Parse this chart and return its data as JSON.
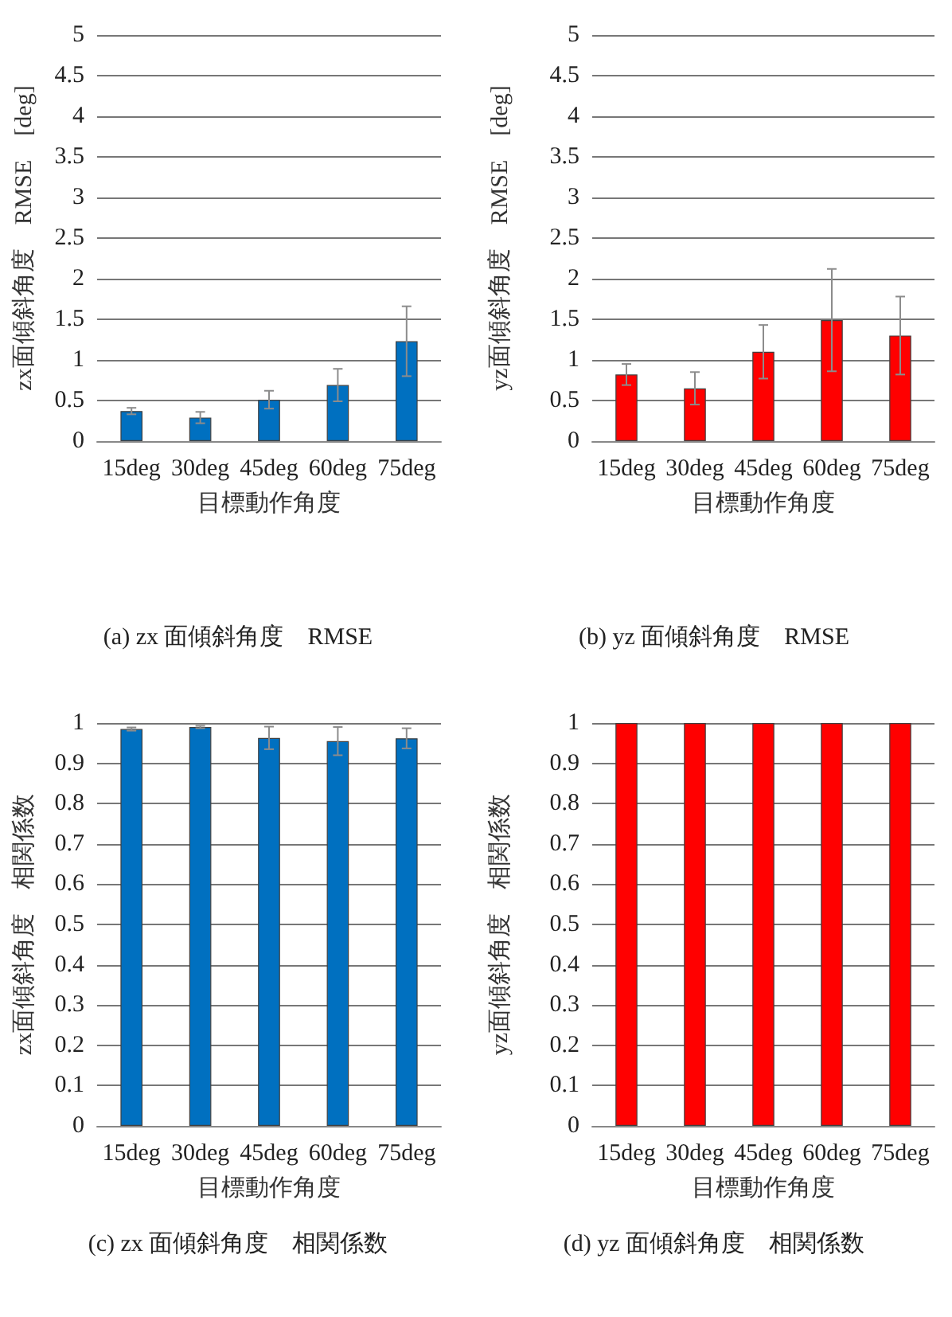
{
  "chart_data": [
    {
      "type": "bar",
      "title": "(a) zx 面傾斜角度　RMSE",
      "xlabel": "目標動作角度",
      "ylabel": "zx面傾斜角度　RMSE　[deg]",
      "categories": [
        "15deg",
        "30deg",
        "45deg",
        "60deg",
        "75deg"
      ],
      "series": [
        {
          "color": "#0070c0",
          "values": [
            0.37,
            0.29,
            0.51,
            0.69,
            1.23
          ],
          "errors": [
            0.04,
            0.07,
            0.11,
            0.2,
            0.43
          ]
        }
      ],
      "ylim": [
        0,
        5
      ],
      "yticks": [
        0,
        0.5,
        1,
        1.5,
        2,
        2.5,
        3,
        3.5,
        4,
        4.5,
        5
      ],
      "grid": "y"
    },
    {
      "type": "bar",
      "title": "(b) yz 面傾斜角度　RMSE",
      "xlabel": "目標動作角度",
      "ylabel": "yz面傾斜角度　RMSE　[deg]",
      "categories": [
        "15deg",
        "30deg",
        "45deg",
        "60deg",
        "75deg"
      ],
      "series": [
        {
          "color": "#ff0000",
          "values": [
            0.82,
            0.65,
            1.1,
            1.49,
            1.3
          ],
          "errors": [
            0.13,
            0.2,
            0.33,
            0.63,
            0.48
          ]
        }
      ],
      "ylim": [
        0,
        5
      ],
      "yticks": [
        0,
        0.5,
        1,
        1.5,
        2,
        2.5,
        3,
        3.5,
        4,
        4.5,
        5
      ],
      "grid": "y"
    },
    {
      "type": "bar",
      "title": "(c) zx 面傾斜角度　相関係数",
      "xlabel": "目標動作角度",
      "ylabel": "zx面傾斜角度　相関係数",
      "categories": [
        "15deg",
        "30deg",
        "45deg",
        "60deg",
        "75deg"
      ],
      "series": [
        {
          "color": "#0070c0",
          "values": [
            0.985,
            0.99,
            0.963,
            0.955,
            0.962
          ],
          "errors": [
            0.004,
            0.003,
            0.028,
            0.035,
            0.025
          ]
        }
      ],
      "ylim": [
        0,
        1
      ],
      "yticks": [
        0,
        0.1,
        0.2,
        0.3,
        0.4,
        0.5,
        0.6,
        0.7,
        0.8,
        0.9,
        1
      ],
      "grid": "y"
    },
    {
      "type": "bar",
      "title": "(d) yz 面傾斜角度　相関係数",
      "xlabel": "目標動作角度",
      "ylabel": "yz面傾斜角度　相関係数",
      "categories": [
        "15deg",
        "30deg",
        "45deg",
        "60deg",
        "75deg"
      ],
      "series": [
        {
          "color": "#ff0000",
          "values": [
            1,
            1,
            1,
            1,
            1
          ]
        }
      ],
      "ylim": [
        0,
        1
      ],
      "yticks": [
        0,
        0.1,
        0.2,
        0.3,
        0.4,
        0.5,
        0.6,
        0.7,
        0.8,
        0.9,
        1
      ],
      "grid": "y"
    }
  ]
}
